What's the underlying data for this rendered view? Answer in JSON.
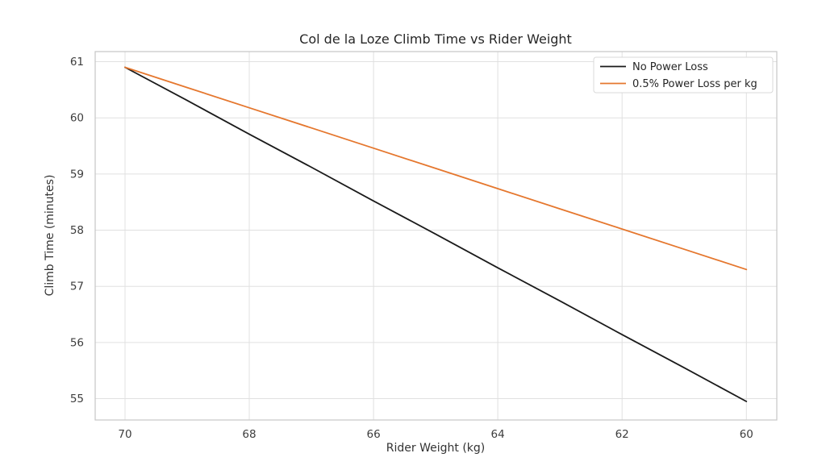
{
  "chart_data": {
    "type": "line",
    "title": "Col de la Loze Climb Time vs Rider Weight",
    "xlabel": "Rider Weight (kg)",
    "ylabel": "Climb Time (minutes)",
    "x": [
      70,
      69,
      68,
      67,
      66,
      65,
      64,
      63,
      62,
      61,
      60
    ],
    "x_ticks": [
      70,
      68,
      66,
      64,
      62,
      60
    ],
    "y_ticks": [
      55,
      56,
      57,
      58,
      59,
      60,
      61
    ],
    "x_inverted": true,
    "xlim": [
      70.48,
      59.51
    ],
    "ylim": [
      54.62,
      61.18
    ],
    "grid": true,
    "legend_position": "upper right",
    "series": [
      {
        "name": "No Power Loss",
        "color": "#1a1a1a",
        "values": [
          60.9,
          60.31,
          59.71,
          59.12,
          58.52,
          57.93,
          57.33,
          56.74,
          56.14,
          55.55,
          54.95
        ]
      },
      {
        "name": "0.5% Power Loss per kg",
        "color": "#e5772e",
        "values": [
          60.9,
          60.54,
          60.18,
          59.82,
          59.46,
          59.1,
          58.74,
          58.38,
          58.02,
          57.66,
          57.3
        ]
      }
    ],
    "colors": {
      "grid": "#e0e0e0",
      "spine": "#c6c6c6",
      "background": "#ffffff"
    }
  }
}
